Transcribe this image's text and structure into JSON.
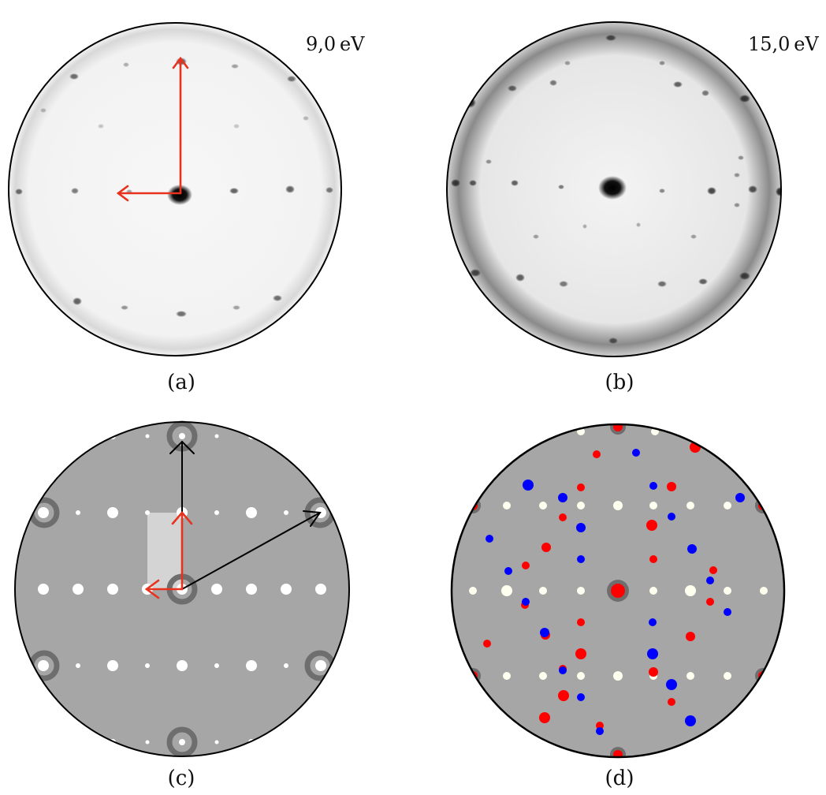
{
  "panels": {
    "a": {
      "caption": "(a)",
      "energy": "9,0 eV"
    },
    "b": {
      "caption": "(b)",
      "energy": "15,0 eV"
    },
    "c": {
      "caption": "(c)"
    },
    "d": {
      "caption": "(d)"
    }
  },
  "colors": {
    "arrow_red": "#e8321e",
    "arrow_black": "#000000",
    "schematic_bg": "#a6a6a6",
    "spot_white": "#ffffff",
    "ring_gray": "#6e6e6e",
    "domain_red": "#ff0000",
    "domain_blue": "#0000ff",
    "spot_cream": "#fffff0"
  }
}
